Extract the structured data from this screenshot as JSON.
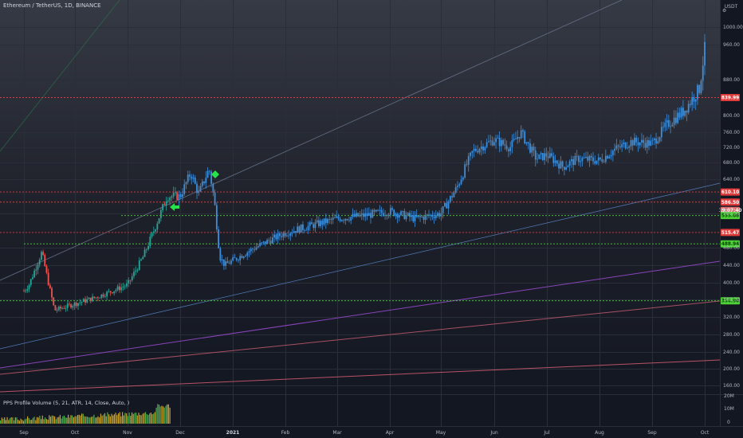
{
  "header": {
    "symbol_title": "Ethereum / TetherUS, 1D, BINANCE",
    "currency": "USDT"
  },
  "indicator": {
    "label": "PPS Profile Volume (5, 21, ATR, 14, Close, Auto, )",
    "axis_top": "20M",
    "axis_mid": "10M",
    "axis_bot": "0"
  },
  "colors": {
    "background": "#131722",
    "candle": "#3d8fdb",
    "candle_early_up": "#26a69a",
    "candle_early_down": "#ef5350",
    "resistance": "#e03b3b",
    "support": "#4cd137",
    "marker": "#27e34a"
  },
  "chart_data": {
    "type": "candlestick",
    "title": "Ethereum / TetherUS, 1D, BINANCE",
    "x_axis_labels": [
      "Sep",
      "Oct",
      "Nov",
      "Dec",
      "2021",
      "Feb",
      "Mar",
      "Apr",
      "May",
      "Jun",
      "Jul",
      "Aug",
      "Sep",
      "Oct"
    ],
    "y_ticks": [
      "1000.00",
      "960.00",
      "880.00",
      "800.00",
      "760.00",
      "720.00",
      "680.00",
      "640.00",
      "560.00",
      "480.00",
      "440.00",
      "400.00",
      "360.00",
      "320.00",
      "280.00",
      "240.00",
      "200.00",
      "160.00"
    ],
    "y_range": [
      140,
      1060
    ],
    "horizontal_levels": [
      {
        "label": "839.99",
        "value": 839.99,
        "type": "resistance"
      },
      {
        "label": "610.10",
        "value": 610.1,
        "type": "resistance"
      },
      {
        "label": "586.50",
        "value": 586.5,
        "type": "resistance"
      },
      {
        "label": "19:07:40",
        "value": 567,
        "type": "time"
      },
      {
        "label": "555.08",
        "value": 555.08,
        "type": "support"
      },
      {
        "label": "515.47",
        "value": 515.47,
        "type": "resistance"
      },
      {
        "label": "488.94",
        "value": 488.94,
        "type": "support"
      },
      {
        "label": "356.90",
        "value": 356.9,
        "type": "support"
      }
    ],
    "price_path": [
      {
        "m": 0,
        "p": 380
      },
      {
        "m": 0.1,
        "p": 395
      },
      {
        "m": 0.35,
        "p": 470
      },
      {
        "m": 0.6,
        "p": 335
      },
      {
        "m": 1.0,
        "p": 350
      },
      {
        "m": 1.4,
        "p": 365
      },
      {
        "m": 1.8,
        "p": 385
      },
      {
        "m": 2.0,
        "p": 395
      },
      {
        "m": 2.3,
        "p": 460
      },
      {
        "m": 2.5,
        "p": 520
      },
      {
        "m": 2.75,
        "p": 600
      },
      {
        "m": 3.0,
        "p": 600
      },
      {
        "m": 3.2,
        "p": 655
      },
      {
        "m": 3.35,
        "p": 605
      },
      {
        "m": 3.55,
        "p": 665
      },
      {
        "m": 3.65,
        "p": 590
      },
      {
        "m": 3.75,
        "p": 460
      },
      {
        "m": 3.85,
        "p": 440
      },
      {
        "m": 4.2,
        "p": 465
      },
      {
        "m": 4.5,
        "p": 485
      },
      {
        "m": 5.0,
        "p": 515
      },
      {
        "m": 5.3,
        "p": 525
      },
      {
        "m": 5.6,
        "p": 535
      },
      {
        "m": 6.0,
        "p": 548
      },
      {
        "m": 6.5,
        "p": 555
      },
      {
        "m": 7.0,
        "p": 565
      },
      {
        "m": 7.5,
        "p": 548
      },
      {
        "m": 8.0,
        "p": 560
      },
      {
        "m": 8.3,
        "p": 620
      },
      {
        "m": 8.6,
        "p": 710
      },
      {
        "m": 9.0,
        "p": 740
      },
      {
        "m": 9.3,
        "p": 720
      },
      {
        "m": 9.5,
        "p": 760
      },
      {
        "m": 9.8,
        "p": 690
      },
      {
        "m": 10.0,
        "p": 700
      },
      {
        "m": 10.3,
        "p": 670
      },
      {
        "m": 10.6,
        "p": 690
      },
      {
        "m": 11.0,
        "p": 685
      },
      {
        "m": 11.3,
        "p": 715
      },
      {
        "m": 11.6,
        "p": 735
      },
      {
        "m": 12.0,
        "p": 730
      },
      {
        "m": 12.3,
        "p": 780
      },
      {
        "m": 12.6,
        "p": 810
      },
      {
        "m": 12.9,
        "p": 860
      },
      {
        "m": 13.0,
        "p": 950
      }
    ],
    "volume_note": "Profile volume histogram in lower pane, present from Sep to early Dec"
  }
}
